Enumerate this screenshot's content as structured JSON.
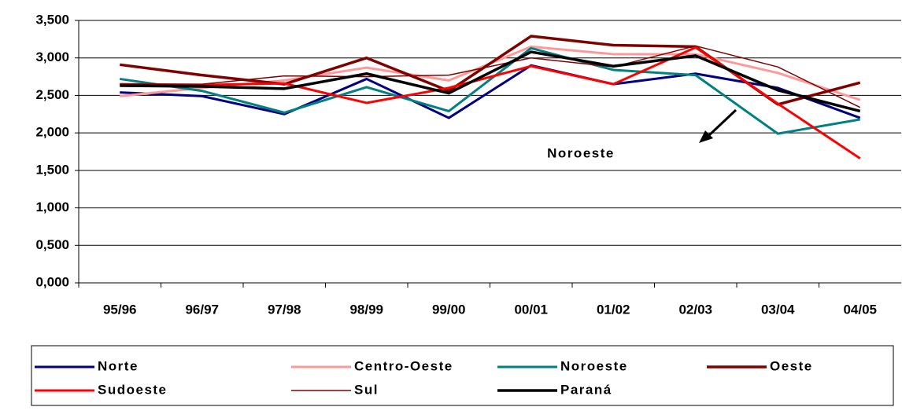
{
  "chart_data": {
    "type": "line",
    "categories": [
      "95/96",
      "96/97",
      "97/98",
      "98/99",
      "99/00",
      "00/01",
      "01/02",
      "02/03",
      "03/04",
      "04/05"
    ],
    "series": [
      {
        "name": "Norte",
        "color": "#000080",
        "line_width": 3,
        "values": [
          2540,
          2490,
          2250,
          2720,
          2200,
          2900,
          2650,
          2790,
          2600,
          2200
        ]
      },
      {
        "name": "Centro-Oeste",
        "color": "#ff9999",
        "line_width": 3,
        "values": [
          2490,
          2600,
          2700,
          2870,
          2700,
          3150,
          3050,
          3050,
          2800,
          2440
        ]
      },
      {
        "name": "Noroeste",
        "color": "#008080",
        "line_width": 3,
        "values": [
          2720,
          2560,
          2270,
          2610,
          2290,
          3130,
          2840,
          2770,
          1990,
          2180
        ]
      },
      {
        "name": "Oeste",
        "color": "#800000",
        "line_width": 3.5,
        "values": [
          2910,
          2770,
          2650,
          3000,
          2560,
          3290,
          3170,
          3150,
          2380,
          2670
        ]
      },
      {
        "name": "Sudoeste",
        "color": "#ff0000",
        "line_width": 3,
        "values": [
          2650,
          2640,
          2660,
          2400,
          2600,
          2890,
          2650,
          3140,
          2390,
          1660
        ]
      },
      {
        "name": "Sul",
        "color": "#800000",
        "line_width": 1.5,
        "values": [
          2650,
          2650,
          2760,
          2750,
          2770,
          3000,
          2880,
          3160,
          2880,
          2340
        ]
      },
      {
        "name": "Paraná",
        "color": "#000000",
        "line_width": 3.5,
        "values": [
          2630,
          2620,
          2590,
          2790,
          2530,
          3080,
          2890,
          3030,
          2570,
          2290
        ]
      }
    ],
    "ylim": [
      0,
      3500
    ],
    "yticks": [
      {
        "value": 0,
        "label": "0,000"
      },
      {
        "value": 500,
        "label": "0,500"
      },
      {
        "value": 1000,
        "label": "1,000"
      },
      {
        "value": 1500,
        "label": "1,500"
      },
      {
        "value": 2000,
        "label": "2,000"
      },
      {
        "value": 2500,
        "label": "2,500"
      },
      {
        "value": 3000,
        "label": "3,000"
      },
      {
        "value": 3500,
        "label": "3,500"
      }
    ],
    "grid": true,
    "legend": "bottom",
    "annotations": [
      {
        "text": "Noroeste"
      }
    ]
  }
}
